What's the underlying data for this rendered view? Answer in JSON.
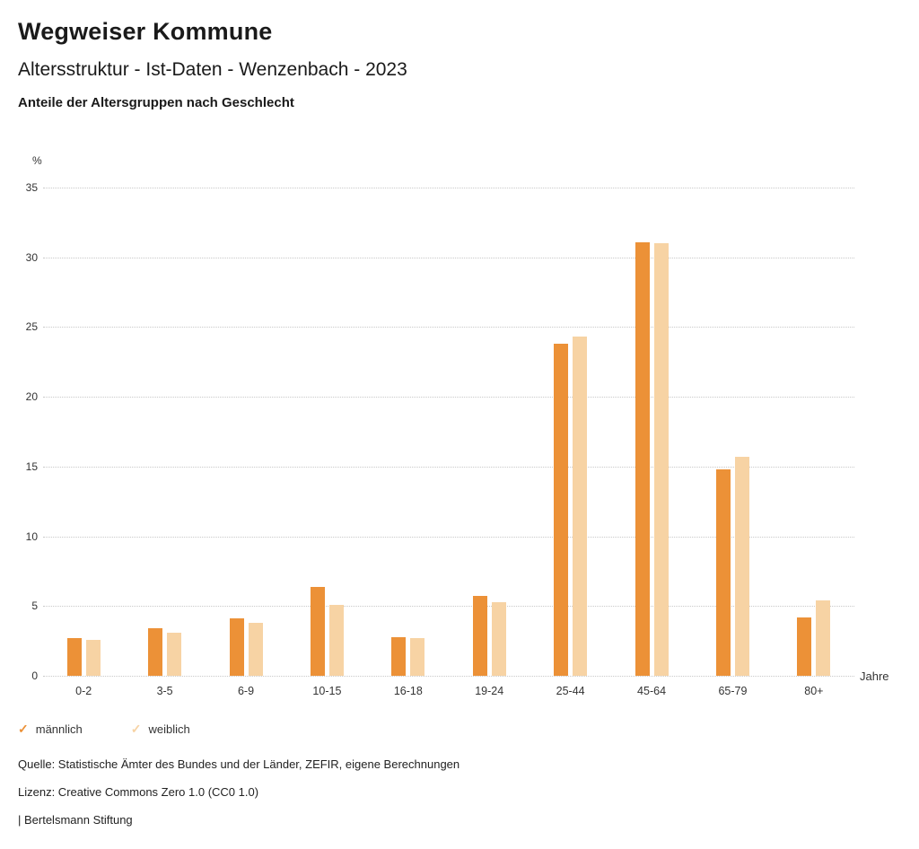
{
  "header": {
    "title": "Wegweiser Kommune",
    "subtitle": "Altersstruktur - Ist-Daten - Wenzenbach - 2023",
    "chart_heading": "Anteile der Altersgruppen nach Geschlecht"
  },
  "chart_data": {
    "type": "bar",
    "title": "Anteile der Altersgruppen nach Geschlecht",
    "unit_label": "%",
    "xlabel": "Jahre",
    "ylim": [
      0,
      35
    ],
    "yticks": [
      0,
      5,
      10,
      15,
      20,
      25,
      30,
      35
    ],
    "grid": true,
    "legend_position": "bottom",
    "categories": [
      "0-2",
      "3-5",
      "6-9",
      "10-15",
      "16-18",
      "19-24",
      "25-44",
      "45-64",
      "65-79",
      "80+"
    ],
    "series": [
      {
        "name": "männlich",
        "color": "#EC9137",
        "values": [
          2.7,
          3.4,
          4.1,
          6.4,
          2.8,
          5.7,
          23.8,
          31.1,
          14.8,
          4.2
        ]
      },
      {
        "name": "weiblich",
        "color": "#F7D3A4",
        "values": [
          2.6,
          3.1,
          3.8,
          5.1,
          2.7,
          5.3,
          24.3,
          31.0,
          15.7,
          5.4
        ]
      }
    ]
  },
  "legend": {
    "check_glyph": "✓"
  },
  "footer": {
    "source": "Quelle: Statistische Ämter des Bundes und der Länder, ZEFIR, eigene Berechnungen",
    "license": "Lizenz: Creative Commons Zero 1.0 (CC0 1.0)",
    "attribution": "| Bertelsmann Stiftung"
  }
}
